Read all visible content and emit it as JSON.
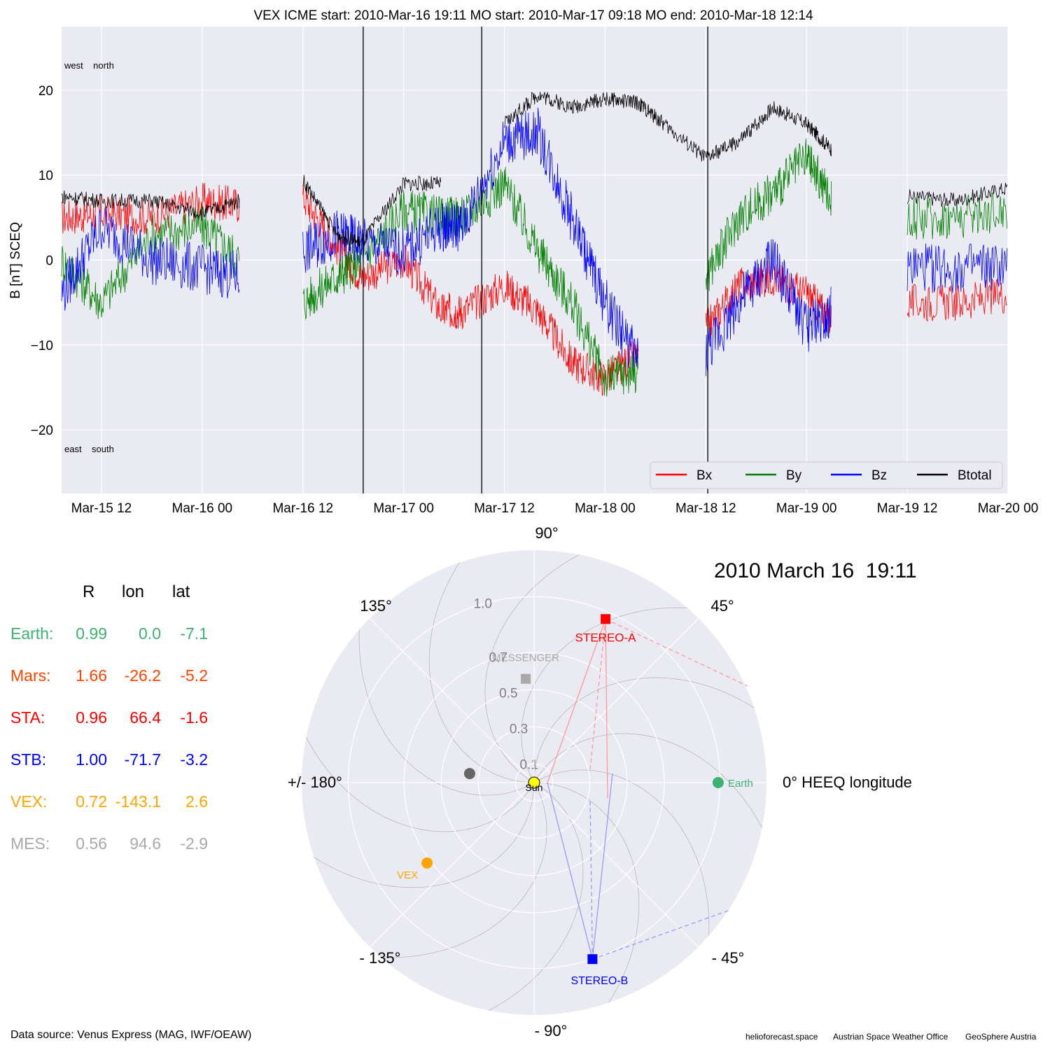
{
  "header": {
    "title": "VEX    ICME start: 2010-Mar-16 19:11   MO start: 2010-Mar-17 09:18   MO end: 2010-Mar-18 12:14"
  },
  "chart_data": [
    {
      "type": "line",
      "title": "VEX    ICME start: 2010-Mar-16 19:11   MO start: 2010-Mar-17 09:18   MO end: 2010-Mar-18 12:14",
      "ylabel": "B [nT] SCEQ",
      "xlabel": "",
      "ylim": [
        -27.5,
        27.5
      ],
      "xlim": [
        "2010-03-15 07:15",
        "2010-03-20 00:00"
      ],
      "xticks": [
        "Mar-15 12",
        "Mar-16 00",
        "Mar-16 12",
        "Mar-17 00",
        "Mar-17 12",
        "Mar-18 00",
        "Mar-18 12",
        "Mar-19 00",
        "Mar-19 12",
        "Mar-20 00"
      ],
      "yticks": [
        -20,
        -10,
        0,
        10,
        20
      ],
      "grid": true,
      "legend_position": "bottom-right",
      "annotations": {
        "top_left": "west    north",
        "bottom_left": "east    south"
      },
      "vlines": [
        "2010-03-16 19:11",
        "2010-03-17 09:18",
        "2010-03-18 12:14"
      ],
      "colors": {
        "Bx": "#ff0000",
        "By": "#008000",
        "Bz": "#0000ff",
        "Btotal": "#000000"
      },
      "x": [
        "2010-03-15 07:15",
        "2010-03-15 12:00",
        "2010-03-15 18:00",
        "2010-03-16 00:00",
        "2010-03-16 04:30",
        "2010-03-16 07:00",
        "2010-03-16 12:00",
        "2010-03-16 16:00",
        "2010-03-16 19:00",
        "2010-03-17 00:00",
        "2010-03-17 04:30",
        "2010-03-17 07:00",
        "2010-03-17 12:00",
        "2010-03-17 16:00",
        "2010-03-17 20:00",
        "2010-03-18 00:00",
        "2010-03-18 04:00",
        "2010-03-18 07:00",
        "2010-03-18 12:00",
        "2010-03-18 16:00",
        "2010-03-18 20:00",
        "2010-03-19 00:00",
        "2010-03-19 03:00",
        "2010-03-19 07:00",
        "2010-03-19 12:00",
        "2010-03-19 18:00",
        "2010-03-20 00:00"
      ],
      "series": [
        {
          "name": "Bx",
          "values": [
            5,
            5.5,
            5,
            7,
            6.5,
            null,
            7.5,
            1.5,
            -2,
            0,
            -6,
            -6,
            -3,
            -6,
            -12,
            -14,
            -11,
            null,
            -8,
            -3,
            -2,
            -4,
            -7,
            null,
            -5,
            -5,
            -4
          ]
        },
        {
          "name": "By",
          "values": [
            0,
            -5,
            3,
            4,
            0,
            null,
            -5,
            -2,
            0,
            6,
            5,
            5,
            9,
            1,
            -5,
            -14,
            -13,
            null,
            -2,
            5,
            8,
            12,
            7,
            null,
            5,
            5,
            6
          ]
        },
        {
          "name": "Bz",
          "values": [
            -4,
            4,
            0,
            -1,
            -2,
            null,
            1,
            3,
            2,
            1,
            4,
            4,
            14,
            15,
            5,
            -5,
            -12,
            null,
            -11,
            -5,
            0,
            -8,
            -6,
            null,
            -1,
            -1,
            -1
          ]
        },
        {
          "name": "Btotal",
          "values": [
            7.5,
            7,
            7,
            5.5,
            7,
            null,
            9.5,
            3,
            2,
            9,
            9,
            null,
            16,
            19.5,
            18,
            19,
            18.5,
            16,
            12,
            14,
            18,
            16,
            13,
            null,
            7.5,
            7,
            8.5
          ]
        }
      ]
    },
    {
      "type": "polar-scatter",
      "title": "2010 March 16  19:11",
      "radial_ticks": [
        "0.1",
        "0.3",
        "0.5",
        "0.7",
        "1.0"
      ],
      "radial_tick_values": [
        0.1,
        0.3,
        0.5,
        0.7,
        1.0
      ],
      "rmax": 1.25,
      "angle_labels": [
        {
          "deg": 0,
          "text": "0° HEEQ longitude"
        },
        {
          "deg": 45,
          "text": "45°"
        },
        {
          "deg": 90,
          "text": "90°"
        },
        {
          "deg": 135,
          "text": "135°"
        },
        {
          "deg": 180,
          "text": "+/- 180°"
        },
        {
          "deg": -135,
          "text": "- 135°"
        },
        {
          "deg": -90,
          "text": "- 90°"
        },
        {
          "deg": -45,
          "text": "- 45°"
        }
      ],
      "points": [
        {
          "label": "Sun",
          "r": 0.0,
          "lon": 0.0,
          "color": "#ffff00",
          "marker": "circle"
        },
        {
          "label": "Earth",
          "r": 0.99,
          "lon": 0.0,
          "color": "#3cb371",
          "marker": "circle"
        },
        {
          "label": "",
          "r": 0.35,
          "lon": 172.0,
          "color": "#666666",
          "marker": "circle"
        },
        {
          "label": "STEREO-A",
          "r": 0.96,
          "lon": 66.4,
          "color": "#ff0000",
          "marker": "square"
        },
        {
          "label": "STEREO-B",
          "r": 1.0,
          "lon": -71.7,
          "color": "#0000ff",
          "marker": "square"
        },
        {
          "label": "VEX",
          "r": 0.72,
          "lon": -143.1,
          "color": "#ffa500",
          "marker": "circle"
        },
        {
          "label": "MESSENGER",
          "r": 0.56,
          "lon": 94.6,
          "color": "#a9a9a9",
          "marker": "square"
        }
      ]
    }
  ],
  "table": {
    "headers": [
      "R",
      "lon",
      "lat"
    ],
    "rows": [
      {
        "name": "Earth:",
        "r": "0.99",
        "lon": "0.0",
        "lat": "-7.1",
        "color": "#3cb371"
      },
      {
        "name": "Mars:",
        "r": "1.66",
        "lon": "-26.2",
        "lat": "-5.2",
        "color": "#ff4500"
      },
      {
        "name": "STA:",
        "r": "0.96",
        "lon": "66.4",
        "lat": "-1.6",
        "color": "#ff0000"
      },
      {
        "name": "STB:",
        "r": "1.00",
        "lon": "-71.7",
        "lat": "-3.2",
        "color": "#0000ff"
      },
      {
        "name": "VEX:",
        "r": "0.72",
        "lon": "-143.1",
        "lat": "2.6",
        "color": "#ffa500"
      },
      {
        "name": "MES:",
        "r": "0.56",
        "lon": "94.6",
        "lat": "-2.9",
        "color": "#a9a9a9"
      }
    ]
  },
  "footer": {
    "data_source": "Data source: Venus Express (MAG, IWF/OEAW)",
    "credits": [
      "helioforecast.space",
      "Austrian Space Weather Office",
      "GeoSphere Austria"
    ]
  }
}
